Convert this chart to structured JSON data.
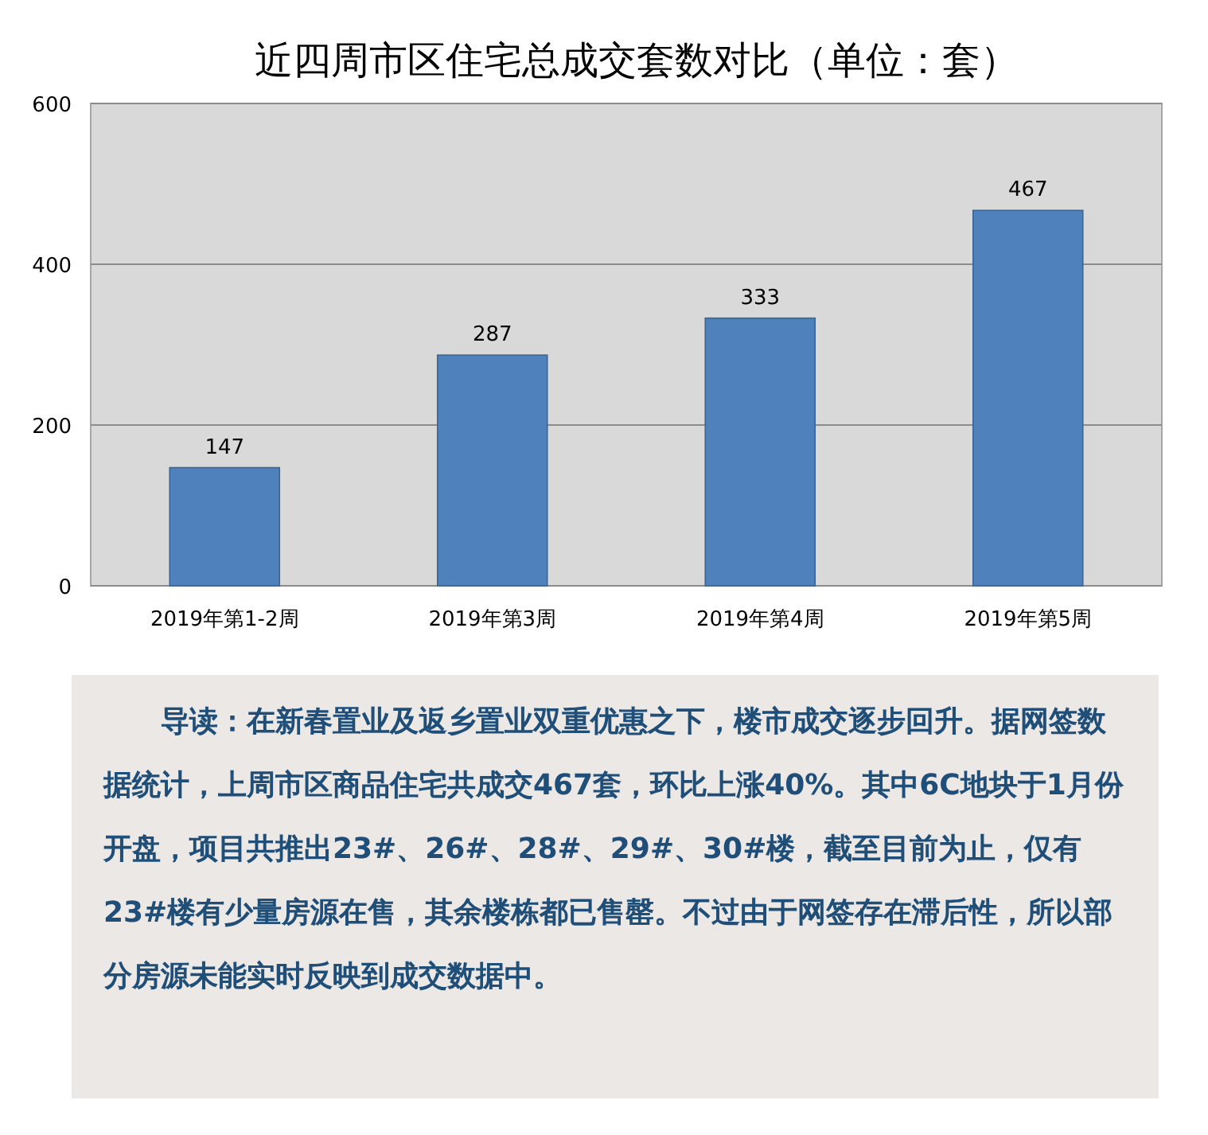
{
  "chart_data": {
    "type": "bar",
    "title": "近四周市区住宅总成交套数对比（单位：套）",
    "categories": [
      "2019年第1-2周",
      "2019年第3周",
      "2019年第4周",
      "2019年第5周"
    ],
    "values": [
      147,
      287,
      333,
      467
    ],
    "color": "#4f81bd",
    "ylim": [
      0,
      600
    ],
    "yticks": [
      0,
      200,
      400,
      600
    ],
    "grid": "y",
    "data_labels": true,
    "annotations": [
      "导读：在新春置业及返乡置业双重优惠之下，楼市成交逐步回升。据网签数据统计，上周市区商品住宅共成交467套，环比上涨40%。其中6C地块于1月份开盘，项目共推出23#、26#、28#、29#、30#楼，截至目前为止，仅有23#楼有少量房源在售，其余楼栋都已售罄。不过由于网签存在滞后性，所以部分房源未能实时反映到成交数据中。"
    ]
  }
}
